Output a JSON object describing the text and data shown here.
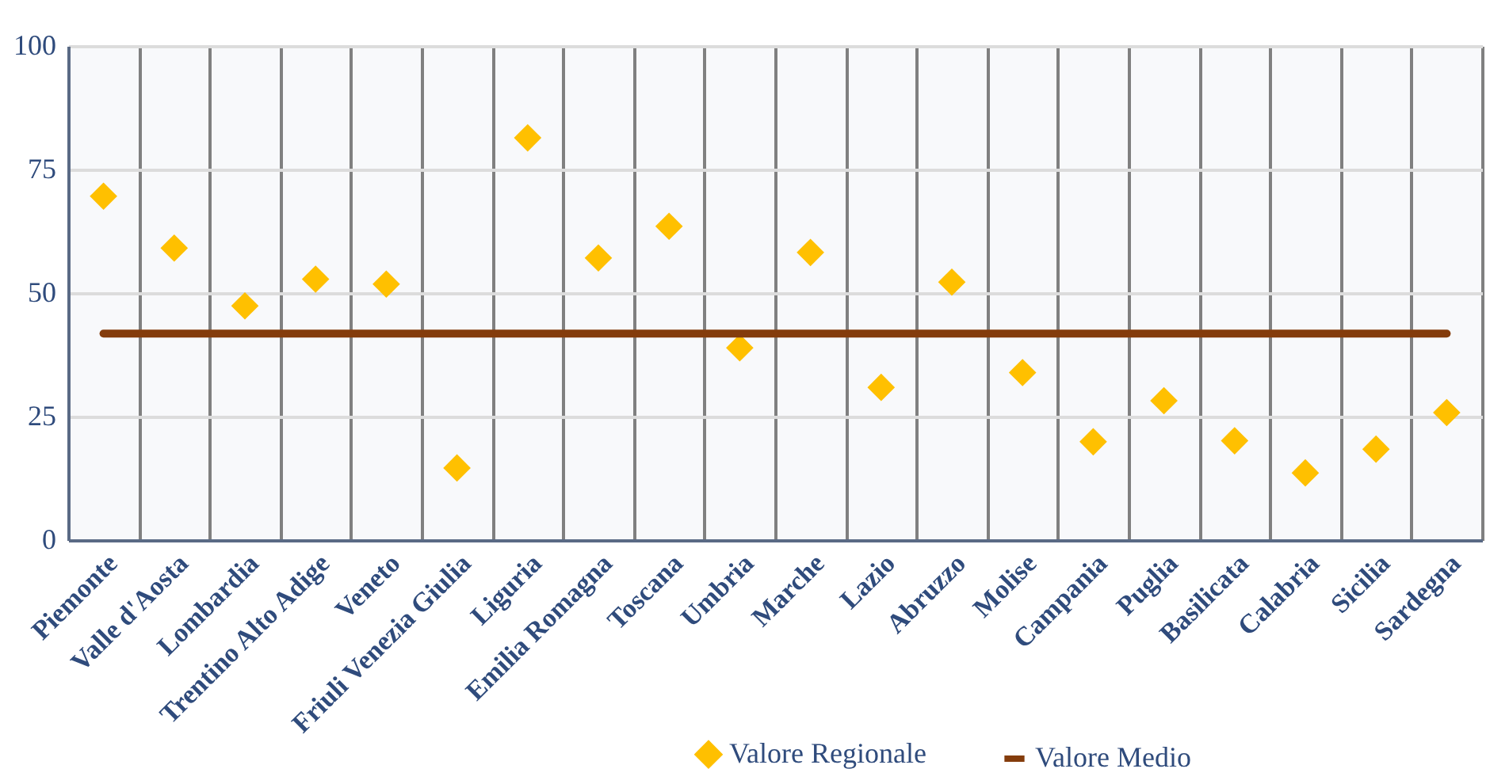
{
  "chart_data": {
    "type": "scatter",
    "categories": [
      "Piemonte",
      "Valle d'Aosta",
      "Lombardia",
      "Trentino Alto Adige",
      "Veneto",
      "Friuli Venezia Giulia",
      "Liguria",
      "Emilia Romagna",
      "Toscana",
      "Umbria",
      "Marche",
      "Lazio",
      "Abruzzo",
      "Molise",
      "Campania",
      "Puglia",
      "Basilicata",
      "Calabria",
      "Sicilia",
      "Sardegna"
    ],
    "series": [
      {
        "name": "Valore Regionale",
        "type": "scatter",
        "color": "#ffc000",
        "marker": "diamond",
        "values": [
          69.6,
          59.1,
          47.4,
          52.8,
          51.8,
          14.6,
          81.4,
          57.1,
          63.5,
          38.9,
          58.2,
          30.9,
          52.2,
          33.9,
          19.9,
          28.2,
          20.1,
          13.6,
          18.4,
          25.8
        ]
      },
      {
        "name": "Valore Medio",
        "type": "line",
        "color": "#843c0c",
        "marker": "none",
        "values": [
          41.8,
          41.8,
          41.8,
          41.8,
          41.8,
          41.8,
          41.8,
          41.8,
          41.8,
          41.8,
          41.8,
          41.8,
          41.8,
          41.8,
          41.8,
          41.8,
          41.8,
          41.8,
          41.8,
          41.8
        ]
      }
    ],
    "ylim": [
      0,
      100
    ],
    "yticks": [
      0,
      25,
      50,
      75,
      100
    ],
    "grid": true,
    "legend": "bottom"
  }
}
